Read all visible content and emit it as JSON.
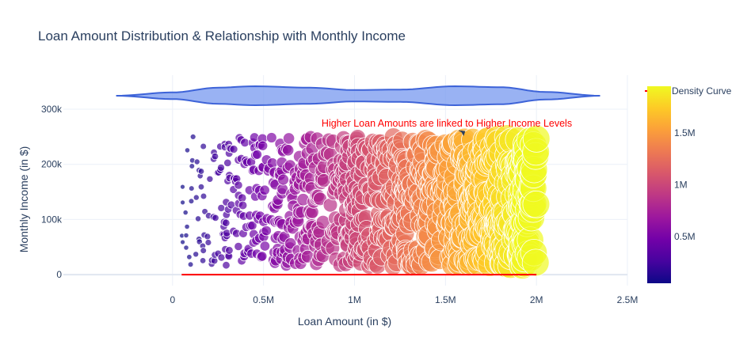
{
  "chart_data": {
    "type": "scatter",
    "title": "Loan Amount Distribution & Relationship with Monthly Income",
    "xlabel": "Loan Amount (in $)",
    "ylabel": "Monthly Income (in $)",
    "xlim": [
      -600000,
      2500000
    ],
    "ylim": [
      -20000,
      300000
    ],
    "x_ticks": [
      {
        "value": 0,
        "label": "0"
      },
      {
        "value": 500000,
        "label": "0.5M"
      },
      {
        "value": 1000000,
        "label": "1M"
      },
      {
        "value": 1500000,
        "label": "1.5M"
      },
      {
        "value": 2000000,
        "label": "2M"
      },
      {
        "value": 2500000,
        "label": "2.5M"
      }
    ],
    "y_ticks": [
      {
        "value": 0,
        "label": "0"
      },
      {
        "value": 100000,
        "label": "100k"
      },
      {
        "value": 200000,
        "label": "200k"
      },
      {
        "value": 300000,
        "label": "300k"
      }
    ],
    "grid": true,
    "annotation": {
      "text": "Higher Loan Amounts are linked to Higher Income Levels",
      "x": 1600000,
      "y": 250000,
      "color": "#ff0000"
    },
    "colorbar": {
      "min": 50000,
      "max": 1950000,
      "ticks": [
        {
          "value": 500000,
          "label": "0.5M"
        },
        {
          "value": 1000000,
          "label": "1M"
        },
        {
          "value": 1500000,
          "label": "1.5M"
        }
      ],
      "colorscale": [
        "#0d0887",
        "#46039f",
        "#7201a8",
        "#9c179e",
        "#bd3786",
        "#d8576b",
        "#ed7953",
        "#fb9f3a",
        "#fdca26",
        "#f0f921"
      ]
    },
    "legend": {
      "placement": "top-right",
      "entries": [
        {
          "name": "Density Curve",
          "color": "#ff0000"
        }
      ]
    },
    "density_curve": {
      "x": [
        50000,
        2000000
      ],
      "y": [
        0,
        0
      ],
      "color": "#ff0000"
    },
    "violin": {
      "x_range": [
        -310000,
        2350000
      ],
      "fill": "#7f9ff0",
      "line": "#3d63d8",
      "profile_x": [
        -310000,
        0,
        250000,
        450000,
        750000,
        1000000,
        1250000,
        1550000,
        1800000,
        2050000,
        2350000
      ],
      "profile_half_width": [
        0,
        0.35,
        0.85,
        1.0,
        0.85,
        0.6,
        0.65,
        1.0,
        0.9,
        0.4,
        0
      ]
    },
    "scatter_size_range_px": [
      3,
      17
    ],
    "scatter_seed": 17,
    "scatter_count": 1000,
    "x_min": 50000,
    "x_max": 2000000,
    "y_min": 15000,
    "y_max": 250000
  }
}
